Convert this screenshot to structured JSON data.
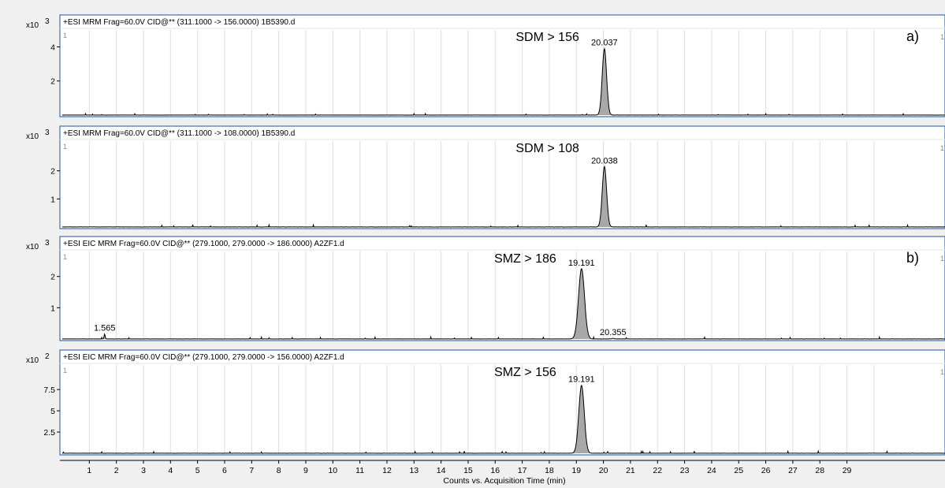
{
  "chart_data": {
    "type": "line",
    "x_axis": {
      "label": "Counts vs. Acquisition Time (min)",
      "range": [
        0,
        30
      ],
      "ticks": [
        "1",
        "2",
        "3",
        "4",
        "5",
        "6",
        "7",
        "8",
        "9",
        "10",
        "11",
        "12",
        "13",
        "14",
        "15",
        "16",
        "17",
        "18",
        "19",
        "20",
        "21",
        "22",
        "23",
        "24",
        "25",
        "26",
        "27",
        "28",
        "29"
      ]
    },
    "panels": [
      {
        "header": "+ESI MRM Frag=60.0V CID@** (311.1000 -> 156.0000) 1B5390.d",
        "scale": "x10",
        "exponent": "3",
        "corner_label": "1",
        "right_label": "1",
        "y_ticks": [
          "2",
          "4"
        ],
        "y_tick_values": [
          2,
          4
        ],
        "ylim": [
          0,
          4.9
        ],
        "annotation": "SDM > 156",
        "panel_tag": "a)",
        "peaks": [
          {
            "rt": 20.037,
            "label": "20.037",
            "height": 3.9,
            "width": 0.08,
            "show_label": true
          }
        ],
        "noise": 0.05,
        "seed": 3
      },
      {
        "header": "+ESI MRM Frag=60.0V CID@** (311.1000 -> 108.0000) 1B5390.d",
        "scale": "x10",
        "exponent": "3",
        "corner_label": "1",
        "right_label": "1",
        "y_ticks": [
          "1",
          "2"
        ],
        "y_tick_values": [
          1,
          2
        ],
        "ylim": [
          0,
          3.0
        ],
        "annotation": "SDM > 108",
        "panel_tag": "",
        "peaks": [
          {
            "rt": 20.038,
            "label": "20.038",
            "height": 2.15,
            "width": 0.08,
            "show_label": true
          }
        ],
        "noise": 0.05,
        "seed": 7
      },
      {
        "header": "+ESI EIC MRM Frag=60.0V CID@** (279.1000, 279.0000 -> 186.0000) A2ZF1.d",
        "scale": "x10",
        "exponent": "3",
        "corner_label": "1",
        "right_label": "1",
        "y_ticks": [
          "1",
          "2"
        ],
        "y_tick_values": [
          1,
          2
        ],
        "ylim": [
          0,
          2.75
        ],
        "annotation": "SMZ > 186",
        "panel_tag": "b)",
        "peaks": [
          {
            "rt": 1.565,
            "label": "1.565",
            "height": 0.16,
            "width": 0.02,
            "show_label": true
          },
          {
            "rt": 19.191,
            "label": "19.191",
            "height": 2.25,
            "width": 0.11,
            "show_label": true
          },
          {
            "rt": 20.355,
            "label": "20.355",
            "height": 0.02,
            "width": 0.04,
            "show_label": true
          }
        ],
        "noise": 0.04,
        "seed": 11
      },
      {
        "header": "+ESI EIC MRM Frag=60.0V CID@** (279.1000, 279.0000 -> 156.0000) A2ZF1.d",
        "scale": "x10",
        "exponent": "2",
        "corner_label": "1",
        "right_label": "1",
        "y_ticks": [
          "2.5",
          "5",
          "7.5"
        ],
        "y_tick_values": [
          2.5,
          5,
          7.5
        ],
        "ylim": [
          0,
          10.2
        ],
        "annotation": "SMZ > 156",
        "panel_tag": "",
        "peaks": [
          {
            "rt": 19.191,
            "label": "19.191",
            "height": 8.0,
            "width": 0.1,
            "show_label": true
          }
        ],
        "noise": 0.15,
        "seed": 19
      }
    ]
  }
}
